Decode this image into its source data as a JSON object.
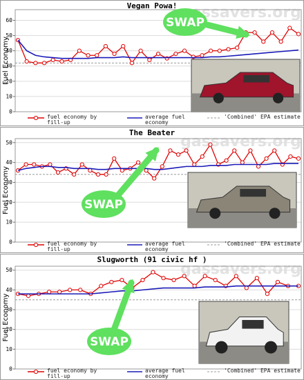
{
  "chart_data": [
    {
      "type": "line",
      "title": "Vegan Powa!",
      "ylabel": "Fuel Economy",
      "watermark": "gassavers.org",
      "annotations": [
        {
          "text": "SWAP"
        }
      ],
      "ylim": [
        0,
        67
      ],
      "yticks": [
        0,
        10,
        20,
        30,
        40,
        50,
        60
      ],
      "grid": true,
      "series": [
        {
          "name": "fuel economy by fill-up",
          "color": "#e00000",
          "marker": "circle",
          "values": [
            47,
            33,
            32,
            32,
            34,
            33,
            34,
            40,
            37,
            37,
            43,
            38,
            43,
            32,
            40,
            34,
            38,
            35,
            38,
            40,
            36,
            37,
            40,
            40,
            41,
            42,
            52,
            52,
            46,
            52,
            46,
            55,
            51
          ]
        },
        {
          "name": "average fuel economy",
          "color": "#1a1ab8",
          "values": [
            47,
            40,
            37,
            36,
            35.5,
            35,
            35,
            35,
            35,
            35.5,
            35.5,
            35.5,
            36,
            35.5,
            35.5,
            35.5,
            35.5,
            35.5,
            35.5,
            35.5,
            35.5,
            35.5,
            36,
            36,
            36.5,
            37,
            37.5,
            38,
            38.5,
            39,
            39.5,
            40,
            40.5
          ]
        }
      ],
      "reference_lines": [
        {
          "name": "'Combined' EPA estimate",
          "value": 32,
          "color": "#999999"
        }
      ]
    },
    {
      "type": "line",
      "title": "The Beater",
      "ylabel": "Fuel Economy",
      "watermark": "gassavers.org",
      "annotations": [
        {
          "text": "SWAP"
        }
      ],
      "ylim": [
        0,
        52
      ],
      "yticks": [
        0,
        10,
        20,
        30,
        40,
        50
      ],
      "grid": true,
      "series": [
        {
          "name": "fuel economy by fill-up",
          "color": "#e00000",
          "marker": "circle",
          "values": [
            36,
            39,
            39,
            38,
            39,
            35,
            37,
            34,
            39,
            36,
            34,
            34,
            42,
            36,
            37,
            40,
            36,
            32,
            38,
            46,
            44,
            46,
            39,
            43,
            49,
            39,
            41,
            46,
            40,
            46,
            38,
            42,
            46,
            39,
            43,
            42
          ]
        },
        {
          "name": "average fuel economy",
          "color": "#1a1ab8",
          "values": [
            36,
            37,
            37.5,
            38,
            38,
            37.5,
            37.5,
            37,
            37,
            37,
            36.5,
            36.5,
            37,
            37,
            37,
            37,
            37,
            36.5,
            36.5,
            37,
            37.5,
            38,
            38,
            38,
            38.5,
            38.5,
            38.5,
            39,
            39,
            39,
            39,
            39,
            39.5,
            39.5,
            39.5,
            39.5
          ]
        }
      ],
      "reference_lines": [
        {
          "name": "'Combined' EPA estimate",
          "value": 34,
          "color": "#999999"
        }
      ]
    },
    {
      "type": "line",
      "title": "Slugworth (91 civic hf )",
      "ylabel": "Fuel Economy",
      "watermark": "gassavers.org",
      "annotations": [
        {
          "text": "SWAP"
        }
      ],
      "ylim": [
        0,
        52
      ],
      "yticks": [
        0,
        10,
        20,
        30,
        40,
        50
      ],
      "grid": true,
      "series": [
        {
          "name": "fuel economy by fill-up",
          "color": "#e00000",
          "marker": "circle",
          "values": [
            38,
            37,
            38,
            39,
            39,
            40,
            40,
            38,
            42,
            44,
            45,
            41,
            45,
            49,
            46,
            45,
            47,
            42,
            47,
            45,
            42,
            47,
            41,
            46,
            38,
            44,
            42,
            42
          ]
        },
        {
          "name": "average fuel economy",
          "color": "#1a1ab8",
          "values": [
            38,
            38,
            38,
            38,
            38,
            38,
            38,
            38,
            38.5,
            39,
            39.5,
            39.5,
            40,
            40.5,
            41,
            41,
            41,
            41,
            41.5,
            41.5,
            41.5,
            42,
            42,
            42,
            42,
            42,
            42,
            42
          ]
        }
      ],
      "reference_lines": [
        {
          "name": "'Combined' EPA estimate",
          "value": 35,
          "color": "#999999"
        }
      ]
    }
  ]
}
